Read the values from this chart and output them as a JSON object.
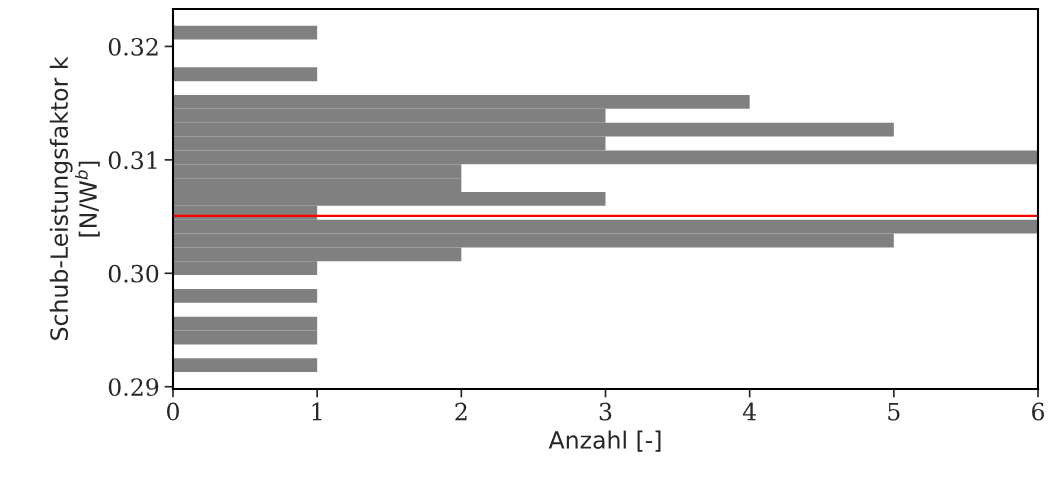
{
  "chart_data": {
    "type": "histogram",
    "orientation": "horizontal",
    "xlabel": "Anzahl [-]",
    "ylabel": "Schub-Leistungsfaktor k\n[N/W$^{b}$]",
    "bins": [
      0.29129,
      0.29251,
      0.29373,
      0.29495,
      0.29618,
      0.2974,
      0.29862,
      0.29984,
      0.30106,
      0.30228,
      0.3035,
      0.30473,
      0.30595,
      0.30717,
      0.30839,
      0.30961,
      0.31083,
      0.31206,
      0.31328,
      0.3145,
      0.31572,
      0.31694,
      0.31816,
      0.31938,
      0.32061,
      0.32183
    ],
    "values": [
      1,
      0,
      1,
      1,
      0,
      1,
      0,
      1,
      2,
      5,
      6,
      1,
      3,
      2,
      2,
      6,
      3,
      5,
      3,
      4,
      0,
      1,
      0,
      0,
      1
    ],
    "color": "#808080",
    "xlim": [
      0,
      6
    ],
    "xticks": [
      0,
      1,
      2,
      3,
      4,
      5,
      6
    ],
    "ylim": [
      0.2898,
      0.3233
    ],
    "yticks": [
      {
        "value": 0.29,
        "label": "0.29"
      },
      {
        "value": 0.3,
        "label": "0.30"
      },
      {
        "value": 0.31,
        "label": "0.31"
      },
      {
        "value": 0.32,
        "label": "0.32"
      }
    ],
    "ref_lines": [
      {
        "axis": "y",
        "value": 0.30506,
        "color": "#ff0000"
      }
    ],
    "grid": false,
    "legend": false
  }
}
